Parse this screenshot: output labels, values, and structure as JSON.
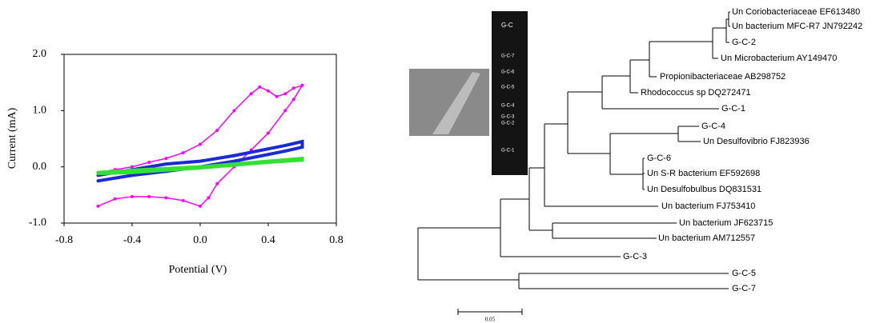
{
  "chart_data": {
    "type": "line",
    "xlabel": "Potential (V)",
    "ylabel": "Current (mA)",
    "xlim": [
      -0.8,
      0.8
    ],
    "ylim": [
      -1.0,
      2.0
    ],
    "xticks": [
      -0.8,
      -0.4,
      {
        "value": 0,
        "label": "0.0"
      },
      0.4,
      0.8
    ],
    "yticks": [
      {
        "value": -1,
        "label": "-1.0"
      },
      {
        "value": 0,
        "label": "0.0"
      },
      {
        "value": 1,
        "label": "1.0"
      },
      {
        "value": 2,
        "label": "2.0"
      }
    ],
    "series": [
      {
        "color": "#ff00ff",
        "x": [
          -0.6,
          -0.5,
          -0.4,
          -0.3,
          -0.2,
          -0.1,
          0,
          0.1,
          0.2,
          0.3,
          0.35,
          0.4,
          0.45,
          0.5,
          0.55,
          0.6,
          0.55,
          0.5,
          0.4,
          0.3,
          0.2,
          0.1,
          0.05,
          0,
          -0.1,
          -0.2,
          -0.3,
          -0.4,
          -0.5,
          -0.6
        ],
        "values": [
          -0.1,
          -0.05,
          0.0,
          0.08,
          0.15,
          0.25,
          0.4,
          0.65,
          1.0,
          1.3,
          1.42,
          1.35,
          1.25,
          1.3,
          1.4,
          1.45,
          1.2,
          1.0,
          0.6,
          0.3,
          0.0,
          -0.3,
          -0.55,
          -0.7,
          -0.6,
          -0.55,
          -0.53,
          -0.53,
          -0.57,
          -0.7
        ]
      },
      {
        "color": "#1a2ad6",
        "x": [
          -0.6,
          -0.4,
          -0.2,
          0,
          0.2,
          0.4,
          0.5,
          0.6,
          0.6,
          0.5,
          0.4,
          0.2,
          0,
          -0.2,
          -0.4,
          -0.6
        ],
        "values": [
          -0.15,
          -0.05,
          0.05,
          0.1,
          0.2,
          0.32,
          0.38,
          0.45,
          0.35,
          0.28,
          0.22,
          0.1,
          0.0,
          -0.08,
          -0.15,
          -0.25
        ]
      },
      {
        "color": "#33e033",
        "x": [
          -0.6,
          -0.4,
          -0.2,
          0,
          0.2,
          0.4,
          0.6,
          0.6,
          0.4,
          0.2,
          0,
          -0.2,
          -0.4,
          -0.6
        ],
        "values": [
          -0.1,
          -0.06,
          -0.03,
          0.0,
          0.05,
          0.1,
          0.15,
          0.12,
          0.08,
          0.03,
          -0.02,
          -0.06,
          -0.1,
          -0.12
        ]
      }
    ]
  },
  "gel": {
    "labels": [
      "G-C",
      "G-C-7",
      "G-C-6",
      "G-C-5",
      "G-C-4",
      "G-C-3",
      "G-C-2",
      "G-C-1"
    ]
  },
  "tree": {
    "leaves": [
      "Un Coriobacteriaceae EF613480",
      "Un bacterium MFC-R7 JN792242",
      "G-C-2",
      "Un Microbacterium AY149470",
      "Propionibacteriaceae AB298752",
      "Rhodococcus sp DQ272471",
      "G-C-1",
      "G-C-4",
      "Un Desulfovibrio FJ823936",
      "G-C-6",
      "Un S-R bacterium EF592698",
      "Un Desulfobulbus DQ831531",
      "Un bacterium FJ753410",
      "Un bacterium JF623715",
      "Un bacterium AM712557",
      "G-C-3",
      "G-C-5",
      "G-C-7"
    ],
    "scale_label": "0.05"
  }
}
